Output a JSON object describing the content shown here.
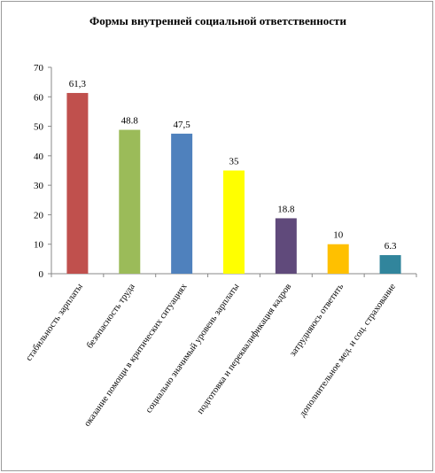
{
  "chart_data": {
    "type": "bar",
    "title": "Формы внутренней социальной ответственности",
    "xlabel": "",
    "ylabel": "",
    "ylim": [
      0,
      70
    ],
    "yticks": [
      0,
      10,
      20,
      30,
      40,
      50,
      60,
      70
    ],
    "grid": false,
    "legend": "none",
    "categories": [
      "стабильность зарплаты",
      "безопасность труда",
      "оказание помощи в критических ситуациях",
      "социально значимый уровень зарплаты",
      "подготовка и переквалификация кадров",
      "затрудняюсь ответить",
      "дополнительное мед. и соц. страхование"
    ],
    "values": [
      61.3,
      48.8,
      47.5,
      35,
      18.8,
      10,
      6.3
    ],
    "value_labels": [
      "61,3",
      "48.8",
      "47,5",
      "35",
      "18.8",
      "10",
      "6.3"
    ],
    "colors": [
      "#c0504d",
      "#9bbb59",
      "#4f81bd",
      "#ffff00",
      "#604a7b",
      "#ffc000",
      "#31859c"
    ]
  }
}
